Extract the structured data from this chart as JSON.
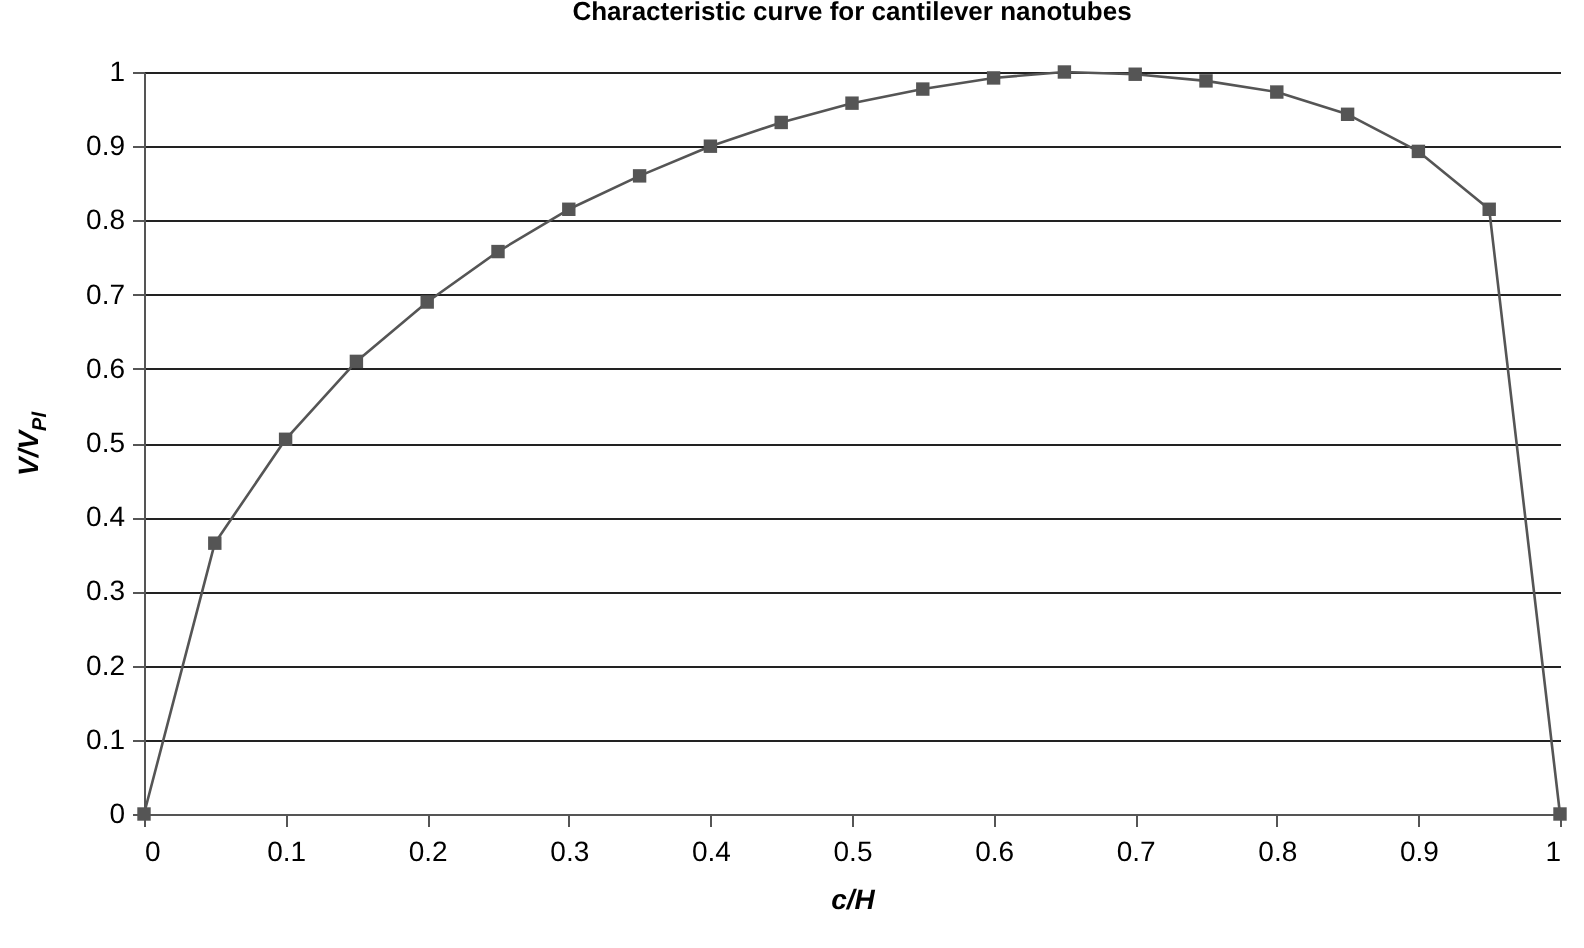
{
  "chart_data": {
    "type": "line",
    "title": "Characteristic curve for cantilever nanotubes",
    "xlabel": "c/H",
    "ylabel": "V/V$_{Pl}$",
    "x": [
      0,
      0.05,
      0.1,
      0.15,
      0.2,
      0.25,
      0.3,
      0.35,
      0.4,
      0.45,
      0.5,
      0.55,
      0.6,
      0.65,
      0.7,
      0.75,
      0.8,
      0.85,
      0.9,
      0.95,
      1.0
    ],
    "series": [
      {
        "color": "#555555",
        "values": [
          0,
          0.365,
          0.505,
          0.61,
          0.69,
          0.758,
          0.815,
          0.86,
          0.9,
          0.932,
          0.958,
          0.977,
          0.992,
          1.0,
          0.997,
          0.988,
          0.973,
          0.943,
          0.893,
          0.815,
          0
        ]
      }
    ],
    "xlim": [
      0,
      1
    ],
    "xticks": [
      0,
      0.1,
      0.2,
      0.3,
      0.4,
      0.5,
      0.6,
      0.7,
      0.8,
      0.9,
      1
    ],
    "ylim": [
      0,
      1
    ],
    "yticks": [
      0,
      0.1,
      0.2,
      0.3,
      0.4,
      0.5,
      0.6,
      0.7,
      0.8,
      0.9,
      1
    ],
    "grid": "y",
    "marker": "square",
    "line_style": "solid"
  }
}
